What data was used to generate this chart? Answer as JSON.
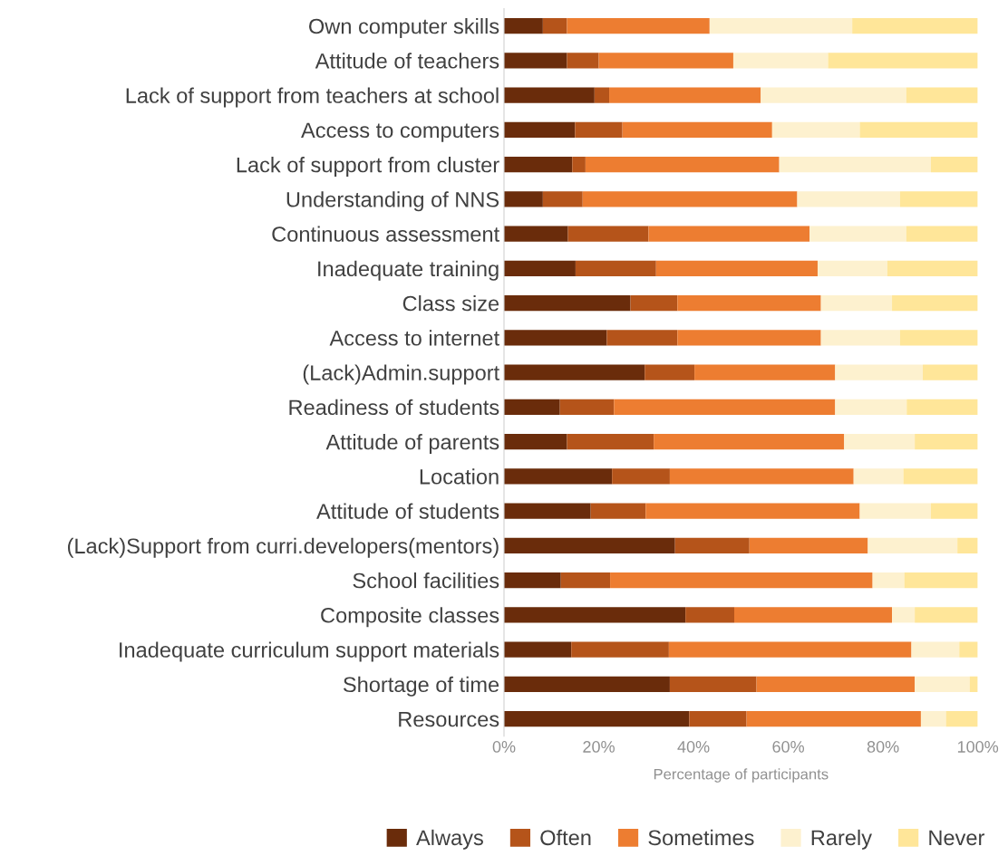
{
  "chart_data": {
    "type": "bar",
    "orientation": "horizontal",
    "stacked": true,
    "categories": [
      "Own computer skills",
      "Attitude of teachers",
      "Lack of support from teachers at school",
      "Access to computers",
      "Lack of support from cluster",
      "Understanding of NNS",
      "Continuous assessment",
      "Inadequate training",
      "Class size",
      "Access to internet",
      "(Lack)Admin.support",
      "Readiness of students",
      "Attitude of parents",
      "Location",
      "Attitude of students",
      "(Lack)Support from curri.developers(mentors)",
      "School facilities",
      "Composite classes",
      "Inadequate curriculum support materials",
      "Shortage of time",
      "Resources"
    ],
    "series": [
      {
        "name": "Always",
        "color": "#6a2c0b",
        "values": [
          8.2,
          13.3,
          19.1,
          15.0,
          14.4,
          8.2,
          13.5,
          15.1,
          26.7,
          21.7,
          29.7,
          11.8,
          13.3,
          22.8,
          18.3,
          36.1,
          12.0,
          38.3,
          14.2,
          35.0,
          39.1
        ]
      },
      {
        "name": "Often",
        "color": "#b5541a",
        "values": [
          5.1,
          6.7,
          3.1,
          10.0,
          2.8,
          8.4,
          17.0,
          17.0,
          9.9,
          14.9,
          10.5,
          11.4,
          18.3,
          12.2,
          11.6,
          15.7,
          10.4,
          10.3,
          20.6,
          18.3,
          12.1
        ]
      },
      {
        "name": "Sometimes",
        "color": "#ed7d31",
        "values": [
          30.1,
          28.4,
          32.0,
          31.6,
          40.9,
          45.3,
          34.0,
          34.1,
          30.3,
          30.3,
          29.7,
          46.7,
          40.2,
          38.8,
          45.2,
          25.0,
          55.4,
          33.3,
          51.2,
          33.4,
          36.8
        ]
      },
      {
        "name": "Rarely",
        "color": "#fdf1cf",
        "values": [
          30.1,
          20.0,
          30.7,
          18.5,
          32.0,
          21.7,
          20.4,
          14.7,
          15.0,
          16.7,
          18.5,
          15.1,
          14.9,
          10.5,
          15.0,
          18.9,
          6.7,
          4.8,
          10.1,
          11.6,
          5.3
        ]
      },
      {
        "name": "Never",
        "color": "#ffe699",
        "values": [
          26.5,
          31.6,
          15.1,
          24.9,
          9.9,
          16.4,
          15.1,
          19.1,
          18.1,
          16.4,
          11.6,
          15.0,
          13.3,
          15.7,
          9.9,
          4.3,
          15.5,
          13.3,
          3.9,
          1.7,
          6.7
        ]
      }
    ],
    "xlim": [
      0,
      100
    ],
    "xticks": [
      {
        "value": 0,
        "label": "0%"
      },
      {
        "value": 20,
        "label": "20%"
      },
      {
        "value": 40,
        "label": "40%"
      },
      {
        "value": 60,
        "label": "60%"
      },
      {
        "value": 80,
        "label": "80%"
      },
      {
        "value": 100,
        "label": "100%"
      }
    ],
    "xlabel": "Percentage of participants",
    "legend": "bottom",
    "grid": false
  }
}
